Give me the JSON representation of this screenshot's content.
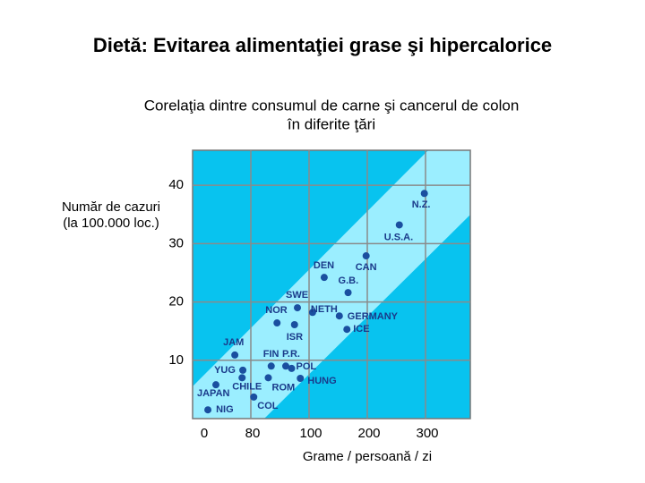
{
  "chart_data": {
    "type": "scatter",
    "title": "Dietă: Evitarea alimentaţiei grase şi hipercalorice",
    "subtitle": [
      "Corelaţia dintre consumul de carne şi cancerul de colon",
      "în diferite ţări"
    ],
    "y_label": [
      "Număr de cazuri",
      "(la 100.000 loc.)"
    ],
    "x_label": "Grame / persoană / zi",
    "xlim": [
      0,
      373
    ],
    "xticks": [
      0,
      80,
      100,
      200,
      300
    ],
    "ylim": [
      0,
      46
    ],
    "yticks": [
      10,
      20,
      30,
      40
    ],
    "grid": true,
    "color": "#1a4fa0",
    "labels": [
      "NIG",
      "JAPAN",
      "COL",
      "CHILE",
      "ROM",
      "JAM",
      "YUG",
      "FIN",
      "P.R.",
      "POL",
      "HUNG",
      "ISR",
      "NOR",
      "SWE",
      "NETH",
      "GERMANY",
      "ICE",
      "G.B.",
      "DEN",
      "CAN",
      "U.S.A.",
      "N.Z."
    ],
    "x": [
      21,
      32,
      81,
      68,
      86,
      58,
      69,
      87,
      92,
      94,
      97,
      95,
      89,
      96,
      106,
      152,
      165,
      167,
      126,
      198,
      255,
      298
    ],
    "y": [
      1.5,
      5.8,
      3.7,
      7.0,
      7.0,
      10.9,
      8.3,
      9.0,
      9.0,
      8.6,
      6.9,
      16.1,
      16.4,
      19.0,
      18.2,
      17.6,
      15.3,
      21.6,
      24.2,
      27.9,
      33.2,
      38.6
    ]
  }
}
